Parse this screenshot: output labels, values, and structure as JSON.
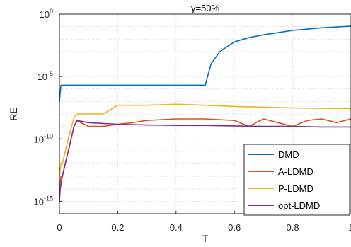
{
  "chart_data": {
    "type": "line",
    "title": "γ=50%",
    "xlabel": "T",
    "ylabel": "RE",
    "xlim": [
      0,
      1
    ],
    "ylim": [
      1e-16,
      1
    ],
    "yscale": "log",
    "grid": true,
    "legend_position": "bottom-right",
    "x_ticks": [
      "0",
      "0.2",
      "0.4",
      "0.6",
      "0.8",
      "1"
    ],
    "y_ticks": [
      {
        "base": "10",
        "exp": "0"
      },
      {
        "base": "10",
        "exp": "-5"
      },
      {
        "base": "10",
        "exp": "-10"
      },
      {
        "base": "10",
        "exp": "-15"
      }
    ],
    "series": [
      {
        "name": "DMD",
        "color": "#0072BD",
        "x": [
          0,
          0.005,
          0.012,
          0.02,
          0.03,
          0.04,
          0.05,
          0.1,
          0.2,
          0.3,
          0.4,
          0.49,
          0.5,
          0.52,
          0.55,
          0.6,
          0.65,
          0.7,
          0.8,
          0.9,
          1.0
        ],
        "y": [
          1e-07,
          2e-06,
          2e-06,
          2e-06,
          2e-06,
          2e-06,
          2e-06,
          2e-06,
          2e-06,
          2e-06,
          2e-06,
          2e-06,
          2e-06,
          0.0001,
          0.001,
          0.006,
          0.013,
          0.022,
          0.05,
          0.08,
          0.11
        ]
      },
      {
        "name": "A-LDMD",
        "color": "#D95319",
        "x": [
          0,
          0.005,
          0.01,
          0.02,
          0.03,
          0.05,
          0.06,
          0.065,
          0.1,
          0.12,
          0.15,
          0.2,
          0.25,
          0.3,
          0.4,
          0.5,
          0.6,
          0.65,
          0.7,
          0.75,
          0.8,
          0.85,
          0.9,
          0.95,
          1.0
        ],
        "y": [
          1e-14,
          1e-13,
          1e-13,
          1e-12,
          1e-11,
          1e-09,
          2.5e-09,
          2.5e-09,
          1e-09,
          1e-09,
          1e-09,
          1.5e-09,
          2e-09,
          3e-09,
          4e-09,
          4e-09,
          3e-09,
          1e-09,
          4e-09,
          2e-09,
          1e-09,
          3e-09,
          4e-09,
          2e-09,
          4e-09
        ]
      },
      {
        "name": "P-LDMD",
        "color": "#EDB120",
        "x": [
          0,
          0.005,
          0.01,
          0.02,
          0.03,
          0.05,
          0.06,
          0.1,
          0.15,
          0.2,
          0.3,
          0.4,
          0.5,
          0.6,
          0.7,
          0.8,
          0.9,
          1.0
        ],
        "y": [
          1e-13,
          1e-12,
          1e-12,
          1e-11,
          1e-10,
          5e-09,
          1e-08,
          1e-08,
          1e-08,
          5e-08,
          5e-08,
          6e-08,
          5e-08,
          4e-08,
          3.5e-08,
          3e-08,
          2.8e-08,
          2.7e-08
        ]
      },
      {
        "name": "opt-LDMD",
        "color": "#7E2F8E",
        "x": [
          0,
          0.003,
          0.01,
          0.02,
          0.03,
          0.05,
          0.06,
          0.1,
          0.2,
          0.3,
          0.4,
          0.5,
          0.6,
          0.7,
          0.8,
          0.9,
          1.0
        ],
        "y": [
          1e-15,
          1e-14,
          1e-13,
          1e-12,
          1e-11,
          1e-09,
          3e-09,
          2e-09,
          1.5e-09,
          1.3e-09,
          1.2e-09,
          1.2e-09,
          1.1e-09,
          1e-09,
          1e-09,
          9e-10,
          9e-10
        ]
      }
    ]
  }
}
